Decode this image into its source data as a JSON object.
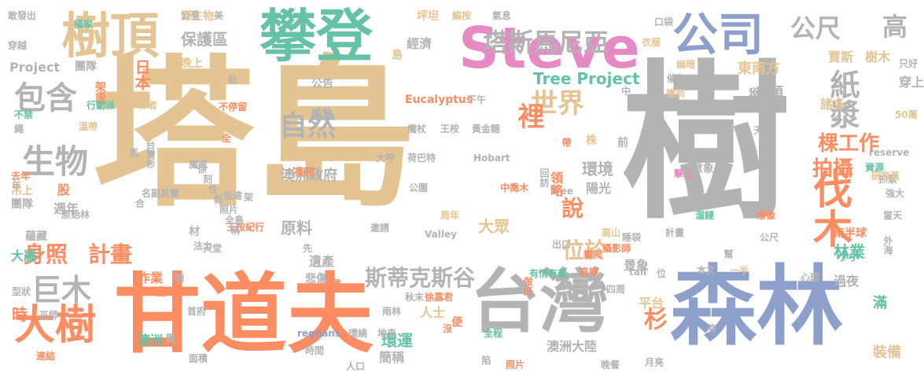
{
  "palette": {
    "tan": "#e5c494",
    "gray": "#b3b3b3",
    "blue": "#8da0cb",
    "teal": "#66c2a5",
    "orange": "#fc8d62",
    "pink": "#e78ac3",
    "green": "#a6d854",
    "yellow": "#ffd92f"
  },
  "words": [
    "塔島",
    "樹",
    "甘道夫",
    "森林",
    "台灣",
    "攀登",
    "Steve",
    "樹頂",
    "公司",
    "大樹",
    "伐木",
    "塔斯馬尼亞",
    "公尺",
    "高",
    "紙漿",
    "世界",
    "自然",
    "包含",
    "生物",
    "身照",
    "計畫",
    "巨木",
    "斯蒂克斯谷",
    "裡",
    "說",
    "棵工作",
    "拍攝",
    "位於",
    "環境",
    "日本",
    "保護區",
    "野生物",
    "敢發出",
    "穿越",
    "Project",
    "團隊",
    "Tree Project",
    "經濟",
    "澳洲政府",
    "原料",
    "遺產",
    "悲傷",
    "作業",
    "環運",
    "簡稱",
    "澳洲大陸",
    "杉",
    "林業",
    "南半球",
    "Eucalyptus",
    "Hobart",
    "Valley",
    "大眾",
    "大呼",
    "荷巴特",
    "王桉",
    "黃金糖",
    "魔杖",
    "下午",
    "威脅",
    "公告",
    "樹木",
    "賈斯",
    "鳥類",
    "諸多",
    "陽光",
    "前",
    "株",
    "帶",
    "點",
    "小小",
    "過夜",
    "滿",
    "裝備",
    "時",
    "澳洲",
    "首府",
    "面積",
    "人口",
    "照片",
    "晚餐",
    "月亮",
    "陷",
    "全程",
    "地表",
    "時間",
    "regnans",
    "雨林",
    "秋末",
    "徐嘉君",
    "人士",
    "便",
    "有情有義",
    "做好",
    "高樹",
    "四周",
    "平台",
    "景象",
    "一半",
    "心理",
    "本文",
    "tall",
    "幫",
    "公尺",
    "計畫",
    "睡袋",
    "高山",
    "溜鏈",
    "想像",
    "周年",
    "邀請",
    "大羅",
    "蘊藏",
    "原始林",
    "團隊",
    "吊上",
    "材",
    "王桉紀行",
    "天堂",
    "魔戒",
    "吊床",
    "抵達",
    "架",
    "公園",
    "Tree",
    "回訪",
    "中喬木",
    "領略",
    "去年",
    "馬",
    "台灣杉",
    "全",
    "不停留",
    "不禁",
    "繩",
    "溫帶",
    "架設",
    "行動派",
    "作者",
    "東南方",
    "猴子",
    "主角",
    "50萬",
    "令",
    "天黑",
    "reserve",
    "資源",
    "抓緊",
    "研究員",
    "強大",
    "當天",
    "外海",
    "型狀",
    "巫師",
    "連結",
    "台",
    "異",
    "國家",
    "公里",
    "美",
    "坪坦",
    "編按",
    "氣息",
    "口袋",
    "衣服",
    "只好",
    "穿上",
    "幽暗",
    "催生",
    "撞到",
    "中",
    "島",
    "赴",
    "名副其實",
    "合",
    "法力",
    "先",
    "雞",
    "頭",
    "晚上",
    "年",
    "股",
    "週年",
    "凍死",
    "擊上",
    "意象",
    "出口",
    "身",
    "位",
    "攀爬",
    "攝影師",
    "環繞",
    "沒",
    "徐",
    "刻",
    "住",
    "新",
    "照片",
    "全島",
    "稱"
  ]
}
